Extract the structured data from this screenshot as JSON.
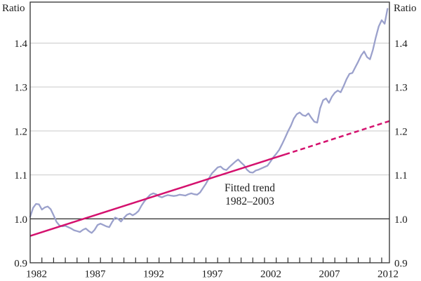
{
  "page": {
    "background": "#ffffff"
  },
  "chart_data": {
    "type": "line",
    "title": "",
    "y_axis": {
      "label_left": "Ratio",
      "label_right": "Ratio",
      "min": 0.9,
      "max": 1.4932,
      "ticks": [
        0.9,
        1.0,
        1.1,
        1.2,
        1.3,
        1.4
      ],
      "reference_line": 1.0,
      "grid": true
    },
    "x_axis": {
      "start": 1982,
      "end": 2012.66,
      "minor_tick_every_years": 1,
      "label_years": [
        1982,
        1987,
        1992,
        1997,
        2002,
        2007,
        2012
      ]
    },
    "legend": "none",
    "colors": {
      "series": "#9ba1cc",
      "trend": "#d4116e",
      "grid": "#c9c9c9",
      "reference": "#3a3a3a",
      "frame": "#2f2f2f",
      "label": "#1c1c1c"
    },
    "annotation": {
      "lines": [
        "Fitted trend",
        "1982–2003"
      ]
    },
    "series": [
      {
        "name": "ratio-series",
        "points": [
          [
            1982.0,
            1.005
          ],
          [
            1982.25,
            1.025
          ],
          [
            1982.5,
            1.034
          ],
          [
            1982.75,
            1.033
          ],
          [
            1983.0,
            1.021
          ],
          [
            1983.25,
            1.026
          ],
          [
            1983.5,
            1.028
          ],
          [
            1983.75,
            1.022
          ],
          [
            1984.0,
            1.008
          ],
          [
            1984.25,
            0.993
          ],
          [
            1984.5,
            0.985
          ],
          [
            1984.75,
            0.983
          ],
          [
            1985.0,
            0.984
          ],
          [
            1985.25,
            0.981
          ],
          [
            1985.5,
            0.978
          ],
          [
            1985.75,
            0.974
          ],
          [
            1986.0,
            0.972
          ],
          [
            1986.25,
            0.97
          ],
          [
            1986.5,
            0.975
          ],
          [
            1986.75,
            0.978
          ],
          [
            1987.0,
            0.972
          ],
          [
            1987.25,
            0.968
          ],
          [
            1987.5,
            0.975
          ],
          [
            1987.75,
            0.986
          ],
          [
            1988.0,
            0.989
          ],
          [
            1988.25,
            0.986
          ],
          [
            1988.5,
            0.983
          ],
          [
            1988.75,
            0.981
          ],
          [
            1989.0,
            0.993
          ],
          [
            1989.25,
            1.003
          ],
          [
            1989.5,
            1.0
          ],
          [
            1989.75,
            0.994
          ],
          [
            1990.0,
            1.002
          ],
          [
            1990.25,
            1.009
          ],
          [
            1990.5,
            1.012
          ],
          [
            1990.75,
            1.008
          ],
          [
            1991.0,
            1.012
          ],
          [
            1991.25,
            1.018
          ],
          [
            1991.5,
            1.03
          ],
          [
            1991.75,
            1.04
          ],
          [
            1992.0,
            1.048
          ],
          [
            1992.25,
            1.055
          ],
          [
            1992.5,
            1.058
          ],
          [
            1992.75,
            1.056
          ],
          [
            1993.0,
            1.051
          ],
          [
            1993.25,
            1.049
          ],
          [
            1993.5,
            1.052
          ],
          [
            1993.75,
            1.054
          ],
          [
            1994.0,
            1.053
          ],
          [
            1994.25,
            1.052
          ],
          [
            1994.5,
            1.053
          ],
          [
            1994.75,
            1.055
          ],
          [
            1995.0,
            1.054
          ],
          [
            1995.25,
            1.053
          ],
          [
            1995.5,
            1.056
          ],
          [
            1995.75,
            1.058
          ],
          [
            1996.0,
            1.056
          ],
          [
            1996.25,
            1.055
          ],
          [
            1996.5,
            1.06
          ],
          [
            1996.75,
            1.07
          ],
          [
            1997.0,
            1.08
          ],
          [
            1997.25,
            1.092
          ],
          [
            1997.5,
            1.103
          ],
          [
            1997.75,
            1.11
          ],
          [
            1998.0,
            1.117
          ],
          [
            1998.25,
            1.119
          ],
          [
            1998.5,
            1.113
          ],
          [
            1998.75,
            1.111
          ],
          [
            1999.0,
            1.118
          ],
          [
            1999.25,
            1.124
          ],
          [
            1999.5,
            1.13
          ],
          [
            1999.75,
            1.135
          ],
          [
            2000.0,
            1.128
          ],
          [
            2000.25,
            1.122
          ],
          [
            2000.5,
            1.112
          ],
          [
            2000.75,
            1.106
          ],
          [
            2001.0,
            1.105
          ],
          [
            2001.25,
            1.11
          ],
          [
            2001.5,
            1.112
          ],
          [
            2001.75,
            1.115
          ],
          [
            2002.0,
            1.118
          ],
          [
            2002.25,
            1.121
          ],
          [
            2002.5,
            1.13
          ],
          [
            2002.75,
            1.14
          ],
          [
            2003.0,
            1.148
          ],
          [
            2003.25,
            1.157
          ],
          [
            2003.5,
            1.17
          ],
          [
            2003.75,
            1.184
          ],
          [
            2004.0,
            1.199
          ],
          [
            2004.25,
            1.212
          ],
          [
            2004.5,
            1.228
          ],
          [
            2004.75,
            1.238
          ],
          [
            2005.0,
            1.242
          ],
          [
            2005.25,
            1.236
          ],
          [
            2005.5,
            1.234
          ],
          [
            2005.75,
            1.24
          ],
          [
            2006.0,
            1.23
          ],
          [
            2006.25,
            1.221
          ],
          [
            2006.5,
            1.219
          ],
          [
            2006.75,
            1.252
          ],
          [
            2007.0,
            1.27
          ],
          [
            2007.25,
            1.274
          ],
          [
            2007.5,
            1.264
          ],
          [
            2007.75,
            1.278
          ],
          [
            2008.0,
            1.287
          ],
          [
            2008.25,
            1.292
          ],
          [
            2008.5,
            1.288
          ],
          [
            2008.75,
            1.302
          ],
          [
            2009.0,
            1.318
          ],
          [
            2009.25,
            1.33
          ],
          [
            2009.5,
            1.332
          ],
          [
            2009.75,
            1.345
          ],
          [
            2010.0,
            1.358
          ],
          [
            2010.25,
            1.372
          ],
          [
            2010.5,
            1.381
          ],
          [
            2010.75,
            1.368
          ],
          [
            2011.0,
            1.363
          ],
          [
            2011.25,
            1.385
          ],
          [
            2011.5,
            1.413
          ],
          [
            2011.75,
            1.438
          ],
          [
            2012.0,
            1.452
          ],
          [
            2012.25,
            1.444
          ],
          [
            2012.5,
            1.478
          ]
        ]
      },
      {
        "name": "fitted-trend",
        "label": "Fitted trend 1982–2003",
        "solid": [
          [
            1982.0,
            0.961
          ],
          [
            2003.75,
            1.1465
          ]
        ],
        "dashed": [
          [
            2003.75,
            1.1465
          ],
          [
            2012.66,
            1.2225
          ]
        ]
      }
    ]
  }
}
